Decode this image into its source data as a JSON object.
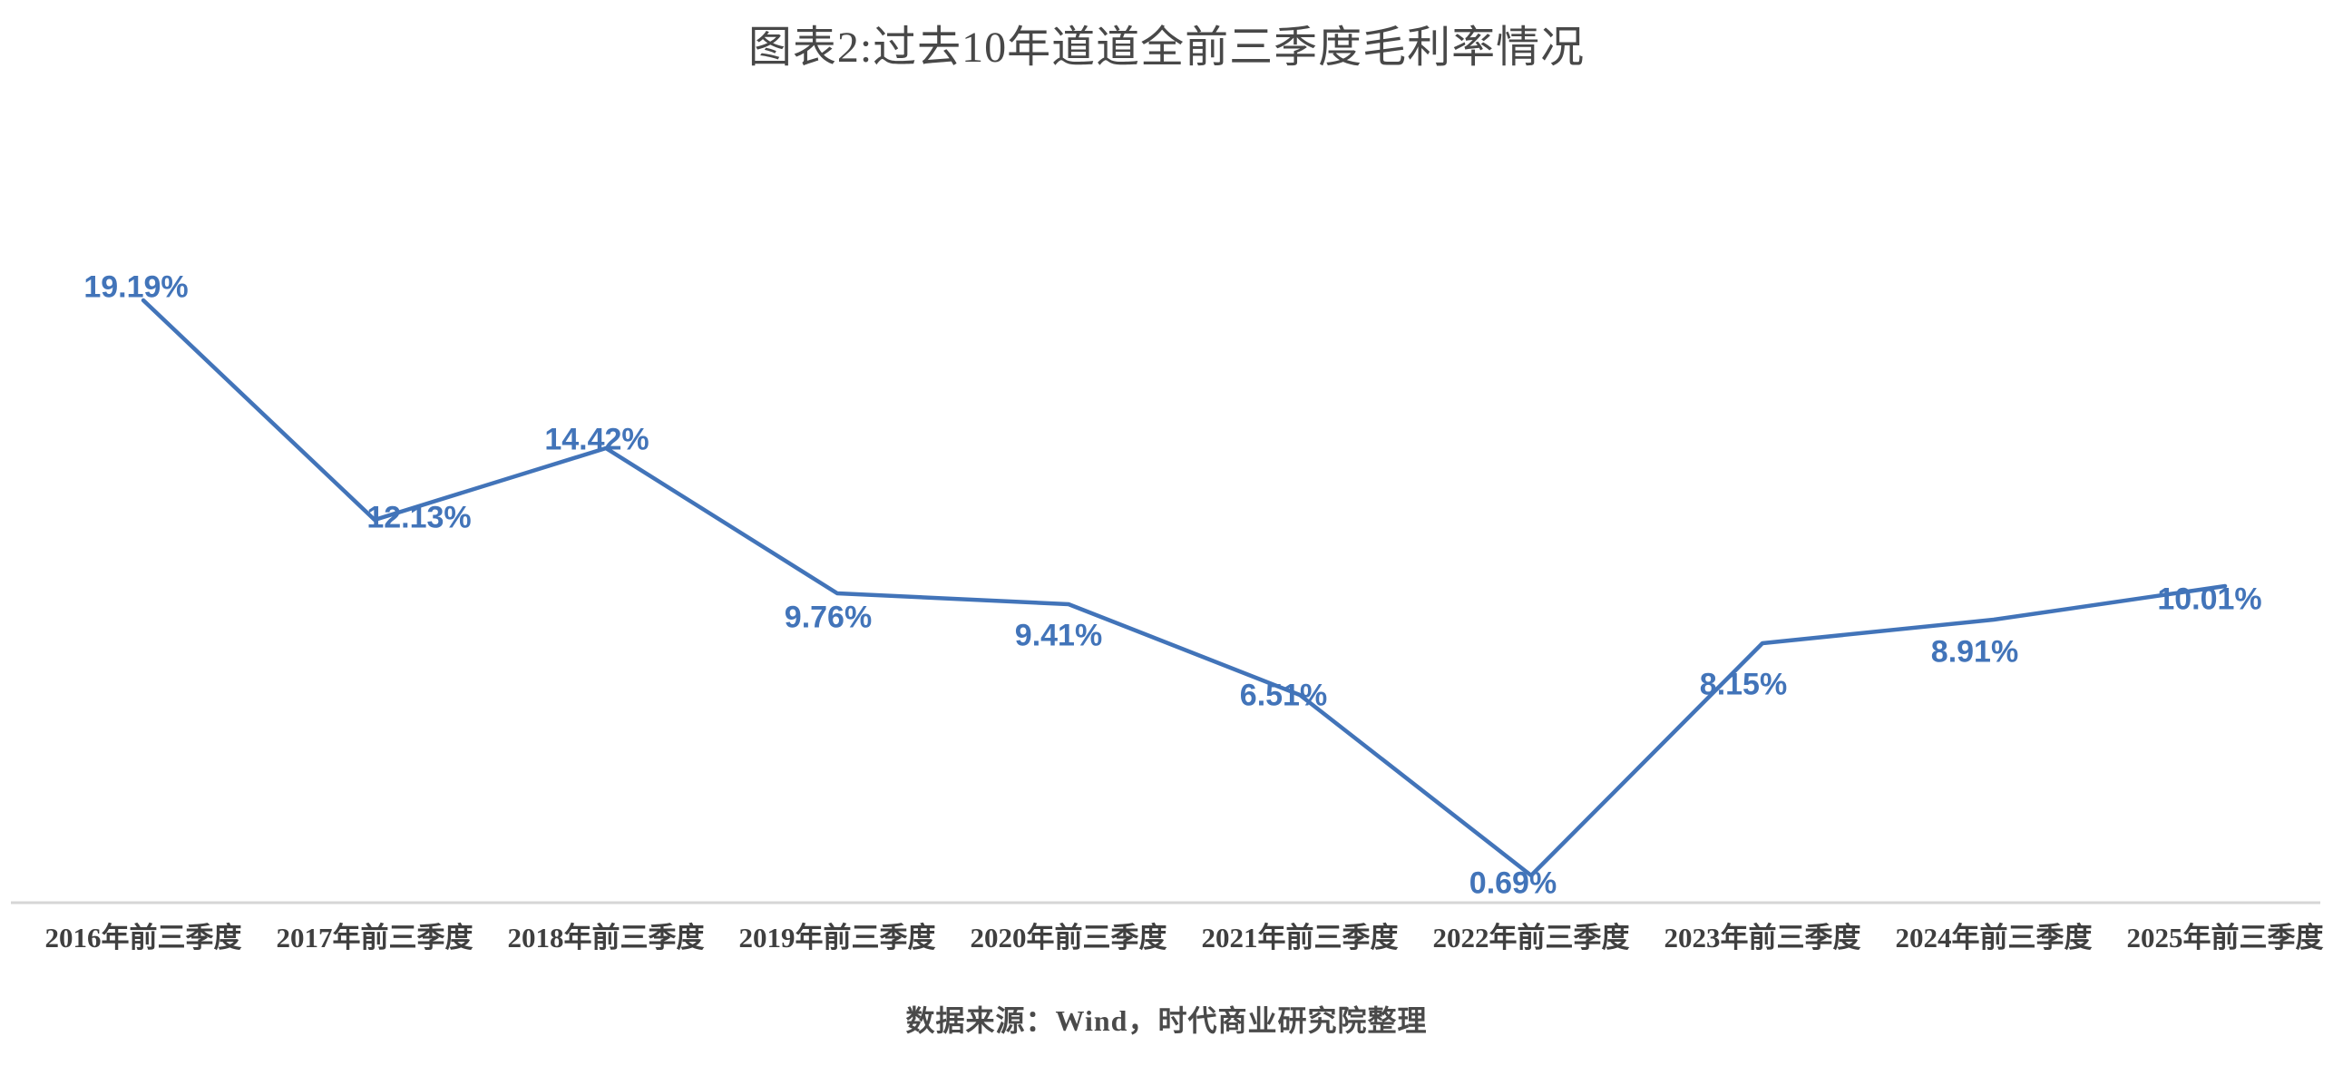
{
  "title": "图表2:过去10年道道全前三季度毛利率情况",
  "source_note": "数据来源：Wind，时代商业研究院整理",
  "colors": {
    "line": "#4274b9",
    "data_label": "#4274b9",
    "title_text": "#484848",
    "axis_label_text": "#3f3f3f",
    "axis_line": "#d6d6d6",
    "background": "#ffffff"
  },
  "chart_data": {
    "type": "line",
    "title": "图表2:过去10年道道全前三季度毛利率情况",
    "categories": [
      "2016年前三季度",
      "2017年前三季度",
      "2018年前三季度",
      "2019年前三季度",
      "2020年前三季度",
      "2021年前三季度",
      "2022年前三季度",
      "2023年前三季度",
      "2024年前三季度",
      "2025年前三季度"
    ],
    "series": [
      {
        "name": "毛利率",
        "values": [
          19.19,
          12.13,
          14.42,
          9.76,
          9.41,
          6.51,
          0.69,
          8.15,
          8.91,
          10.01
        ]
      }
    ],
    "data_labels": [
      "19.19%",
      "12.13%",
      "14.42%",
      "9.76%",
      "9.41%",
      "6.51%",
      "0.69%",
      "8.15%",
      "8.91%",
      "10.01%"
    ],
    "unit": "%",
    "xlabel": "",
    "ylabel": "",
    "y_axis_visible": false,
    "gridlines": false,
    "legend": "none",
    "data_labels_visible": true,
    "source": "数据来源：Wind，时代商业研究院整理"
  }
}
